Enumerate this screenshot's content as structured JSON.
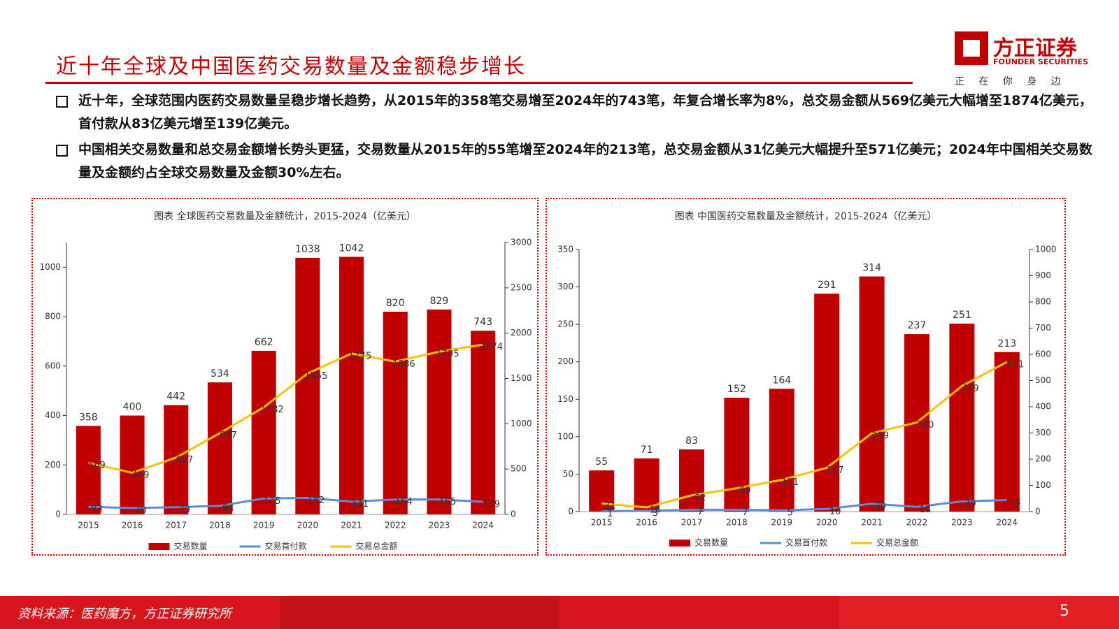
{
  "header": {
    "title": "近十年全球及中国医药交易数量及金额稳步增长",
    "logo": "方正证券",
    "logo_en": "FOUNDER SECURITIES",
    "slogan": "正 在 你 身 边"
  },
  "bullets": [
    "近十年，全球范围内医药交易数量呈稳步增长趋势，从2015年的358笔交易增至2024年的743笔，年复合增长率为8%，总交易金额从569亿美元大幅增至1874亿美元，首付款从83亿美元增至139亿美元。",
    "中国相关交易数量和总交易金额增长势头更猛，交易数量从2015年的55笔增至2024年的213笔，总交易金额从31亿美元大幅提升至571亿美元；2024年中国相关交易数量及金额约占全球交易数量及金额30%左右。"
  ],
  "chart_data": [
    {
      "type": "bar",
      "title": "图表  全球医药交易数量及金额统计，2015-2024（亿美元）",
      "categories": [
        "2015",
        "2016",
        "2017",
        "2018",
        "2019",
        "2020",
        "2021",
        "2022",
        "2023",
        "2024"
      ],
      "series": [
        {
          "name": "交易数量",
          "color": "#c00000",
          "type": "bar",
          "values": [
            358,
            400,
            442,
            534,
            662,
            1038,
            1042,
            820,
            829,
            743
          ]
        },
        {
          "name": "交易首付款",
          "color": "#5b8bd5",
          "type": "line",
          "axis": "y2",
          "values": [
            83,
            70,
            79,
            94,
            175,
            182,
            141,
            164,
            165,
            139
          ]
        },
        {
          "name": "交易总金额",
          "color": "#ffc000",
          "type": "line",
          "axis": "y2",
          "values": [
            569,
            459,
            627,
            897,
            1182,
            1555,
            1775,
            1686,
            1795,
            1874
          ]
        }
      ],
      "ylim": [
        0,
        1100
      ],
      "yticks": [
        0,
        200,
        400,
        600,
        800,
        1000
      ],
      "y2lim": [
        0,
        3000
      ],
      "y2ticks": [
        0,
        500,
        1000,
        1500,
        2000,
        2500,
        3000
      ]
    },
    {
      "type": "bar",
      "title": "图表  中国医药交易数量及金额统计，2015-2024（亿美元）",
      "categories": [
        "2015",
        "2016",
        "2017",
        "2018",
        "2019",
        "2020",
        "2021",
        "2022",
        "2023",
        "2024"
      ],
      "series": [
        {
          "name": "交易数量",
          "color": "#c00000",
          "type": "bar",
          "values": [
            55,
            71,
            83,
            152,
            164,
            291,
            314,
            237,
            251,
            213
          ]
        },
        {
          "name": "交易首付款",
          "color": "#5b8bd5",
          "type": "line",
          "axis": "y2",
          "values": [
            1,
            3,
            7,
            7,
            5,
            10,
            30,
            18,
            39,
            44
          ]
        },
        {
          "name": "交易总金额",
          "color": "#ffc000",
          "type": "line",
          "axis": "y2",
          "values": [
            31,
            16,
            62,
            89,
            121,
            167,
            299,
            340,
            479,
            571
          ]
        }
      ],
      "ylim": [
        0,
        350
      ],
      "yticks": [
        0,
        50,
        100,
        150,
        200,
        250,
        300,
        350
      ],
      "y2lim": [
        0,
        1000
      ],
      "y2ticks": [
        0,
        100,
        200,
        300,
        400,
        500,
        600,
        700,
        800,
        900,
        1000
      ]
    }
  ],
  "footer": {
    "source": "资料来源：医药魔方，方正证券研究所",
    "page": "5"
  }
}
